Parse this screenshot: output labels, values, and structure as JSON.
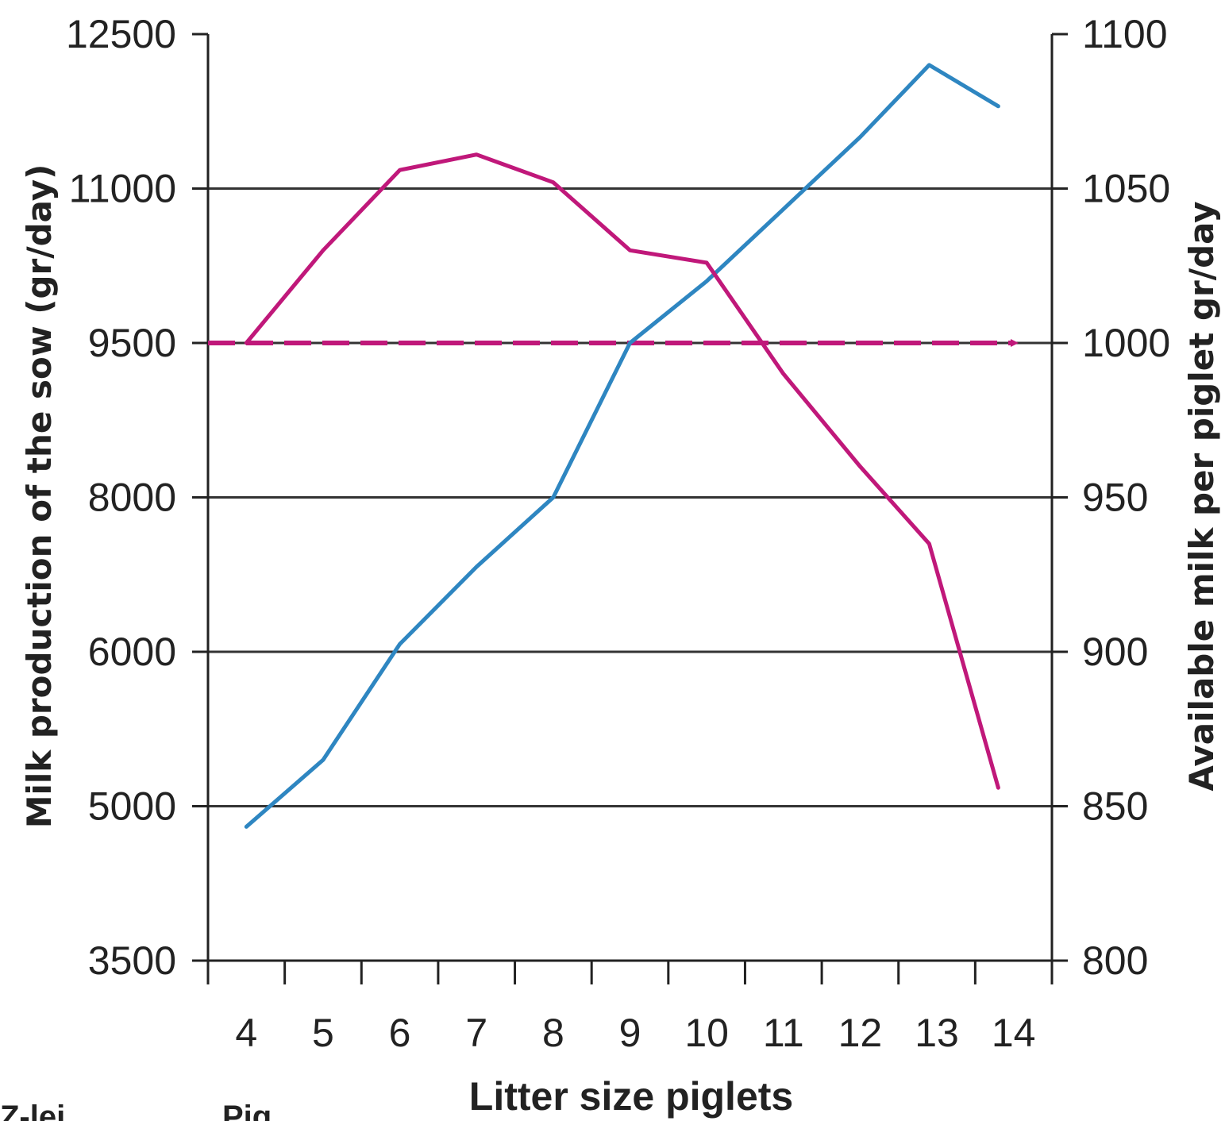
{
  "chart_data": {
    "type": "line",
    "xlabel": "Litter size piglets",
    "ylabel_left": "Milk production of the sow (gr/day)",
    "ylabel_right": "Available milk per piglet gr/day",
    "x_ticks": [
      4,
      5,
      6,
      7,
      8,
      9,
      10,
      11,
      12,
      13,
      14
    ],
    "x_range": [
      3.5,
      14.5
    ],
    "y_left_ticks": [
      3500,
      5000,
      6000,
      8000,
      9500,
      11000,
      12500
    ],
    "y_right_ticks": [
      800,
      850,
      900,
      950,
      1000,
      1050,
      1100
    ],
    "y_right_range": [
      800,
      1100
    ],
    "grid": true,
    "series": [
      {
        "axis": "left",
        "color": "#2e86c1",
        "x": [
          4,
          5,
          6,
          7,
          8,
          9,
          10,
          11,
          12,
          12.9,
          13.8
        ],
        "y": [
          4800,
          5300,
          6100,
          7100,
          8000,
          9500,
          10100,
          10800,
          11500,
          12200,
          11800
        ]
      },
      {
        "axis": "right",
        "color": "#c0187a",
        "x": [
          4,
          5,
          6,
          7,
          8,
          9,
          10,
          11,
          12,
          12.9,
          13.8
        ],
        "y": [
          1000,
          1030,
          1056,
          1061,
          1052,
          1030,
          1026,
          990,
          960,
          935,
          856
        ]
      }
    ],
    "reference_line": {
      "axis": "right",
      "y": 1000,
      "style": "dashed-arrow",
      "color": "#c0187a"
    }
  },
  "footer": {
    "left_text": "Z-lei",
    "mid_text": "Pig"
  }
}
